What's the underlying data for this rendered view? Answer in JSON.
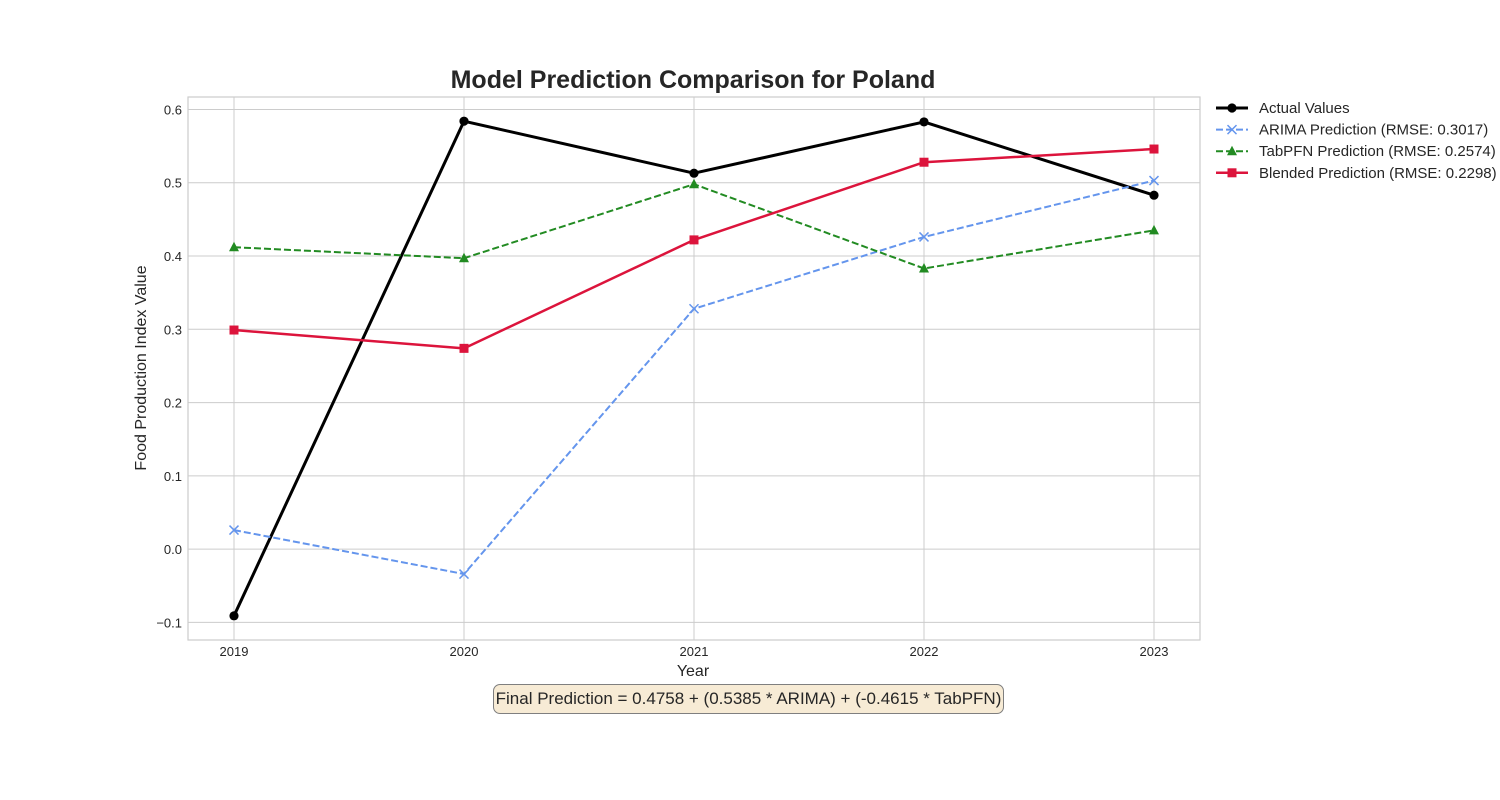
{
  "chart_data": {
    "type": "line",
    "title": "Model Prediction Comparison for Poland",
    "xlabel": "Year",
    "ylabel": "Food Production Index Value",
    "x": [
      2019,
      2020,
      2021,
      2022,
      2023
    ],
    "x_tick_labels": [
      "2019",
      "2020",
      "2021",
      "2022",
      "2023"
    ],
    "y_ticks": [
      -0.1,
      0.0,
      0.1,
      0.2,
      0.3,
      0.4,
      0.5,
      0.6
    ],
    "y_tick_labels": [
      "−0.1",
      "0.0",
      "0.1",
      "0.2",
      "0.3",
      "0.4",
      "0.5",
      "0.6"
    ],
    "xlim": [
      2018.8,
      2023.2
    ],
    "ylim": [
      -0.124,
      0.617
    ],
    "grid": true,
    "legend_position": "outside upper right",
    "series": [
      {
        "name": "Actual Values",
        "values": [
          -0.091,
          0.584,
          0.513,
          0.583,
          0.483
        ],
        "color": "#000000",
        "dash": "solid",
        "marker": "circle",
        "width": 3
      },
      {
        "name": "ARIMA Prediction (RMSE: 0.3017)",
        "values": [
          0.026,
          -0.034,
          0.328,
          0.426,
          0.503
        ],
        "color": "#6495ED",
        "dash": "dashed",
        "marker": "x",
        "width": 2
      },
      {
        "name": "TabPFN Prediction (RMSE: 0.2574)",
        "values": [
          0.412,
          0.397,
          0.498,
          0.383,
          0.435
        ],
        "color": "#228B22",
        "dash": "dashed",
        "marker": "triangle",
        "width": 2
      },
      {
        "name": "Blended Prediction (RMSE: 0.2298)",
        "values": [
          0.299,
          0.274,
          0.422,
          0.528,
          0.546
        ],
        "color": "#DC143C",
        "dash": "solid",
        "marker": "square",
        "width": 2.5
      }
    ],
    "annotation": "Final Prediction = 0.4758 + (0.5385 * ARIMA) + (-0.4615 * TabPFN)"
  }
}
